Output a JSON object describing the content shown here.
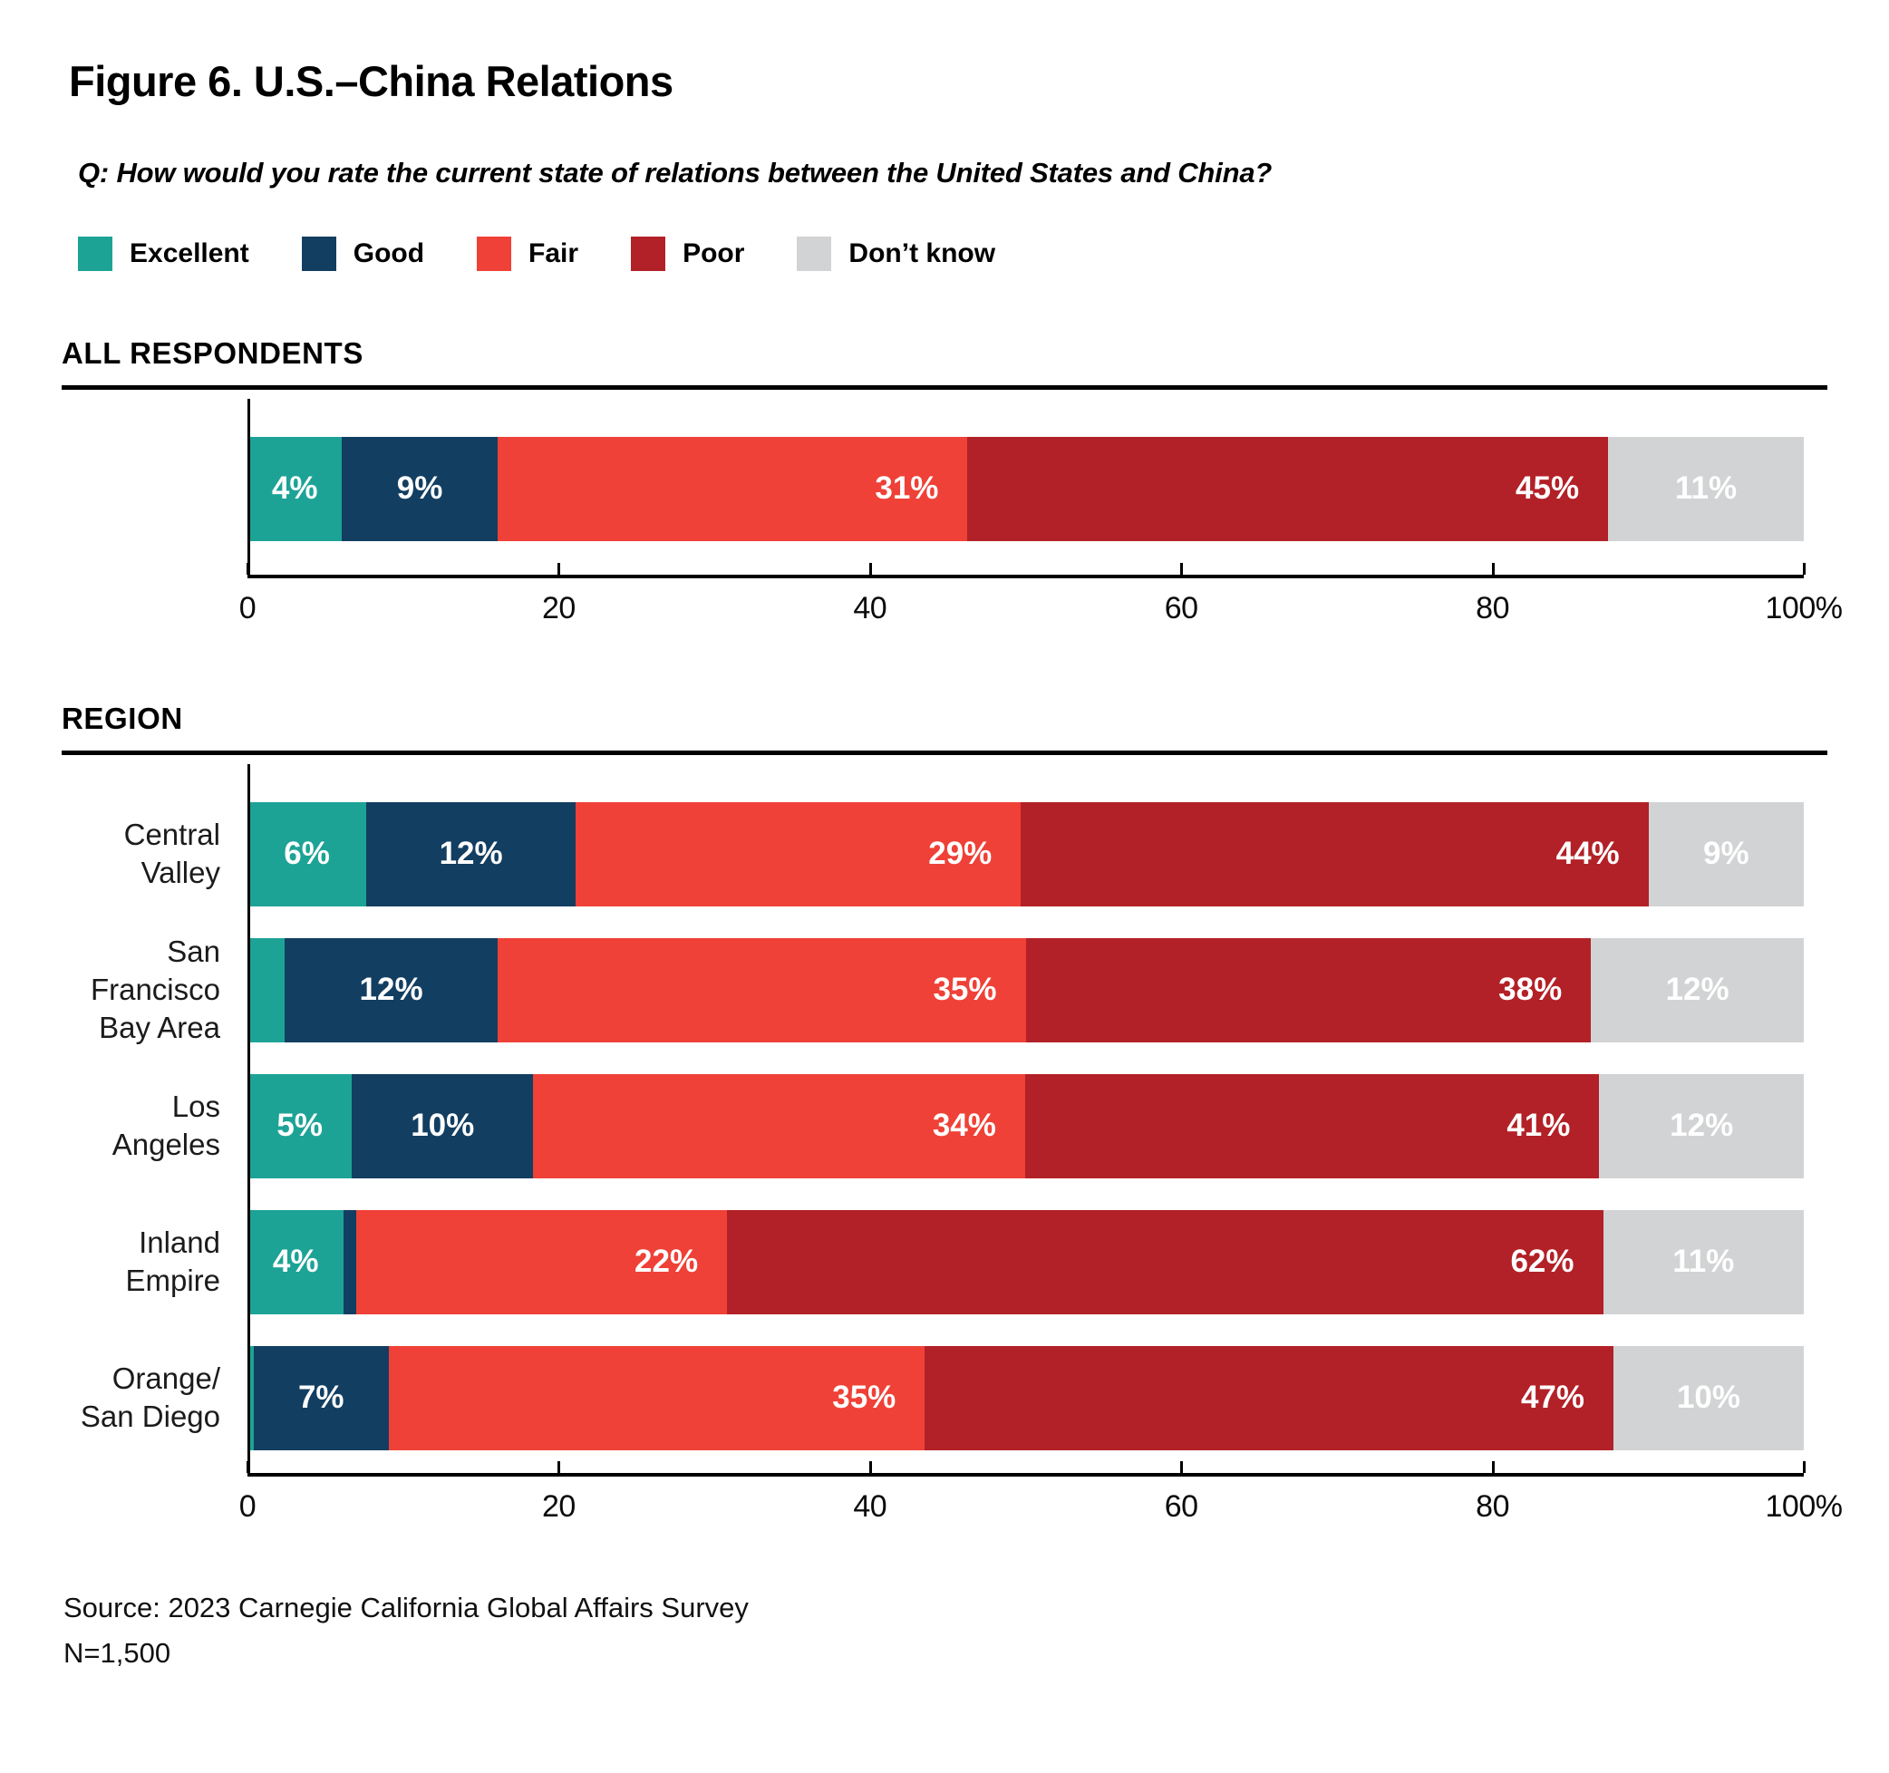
{
  "title": "Figure 6. U.S.–China Relations",
  "question": "Q: How would you rate the current state of relations between the United States and China?",
  "legend": {
    "items": [
      {
        "label": "Excellent",
        "color": "#1DA396"
      },
      {
        "label": "Good",
        "color": "#123E61"
      },
      {
        "label": "Fair",
        "color": "#EF4137"
      },
      {
        "label": "Poor",
        "color": "#B22127"
      },
      {
        "label": "Don’t know",
        "color": "#D2D3D4"
      }
    ]
  },
  "axis": {
    "max": 100,
    "tick_values": [
      0,
      20,
      40,
      60,
      80,
      100
    ],
    "tick_labels": [
      "0",
      "20",
      "40",
      "60",
      "80",
      "100%"
    ]
  },
  "sections": [
    {
      "heading": "ALL RESPONDENTS",
      "rows": [
        {
          "label_lines": [],
          "segments": [
            {
              "value": 4,
              "text": "4%"
            },
            {
              "value": 9,
              "text": "9%"
            },
            {
              "value": 31,
              "text": "31%"
            },
            {
              "value": 45,
              "text": "45%"
            },
            {
              "value": 11,
              "text": "11%"
            }
          ]
        }
      ]
    },
    {
      "heading": "REGION",
      "rows": [
        {
          "label_lines": [
            "Central Valley"
          ],
          "segments": [
            {
              "value": 6,
              "text": "6%"
            },
            {
              "value": 12,
              "text": "12%"
            },
            {
              "value": 29,
              "text": "29%"
            },
            {
              "value": 44,
              "text": "44%"
            },
            {
              "value": 9,
              "text": "9%"
            }
          ]
        },
        {
          "label_lines": [
            "San Francisco",
            "Bay Area"
          ],
          "segments": [
            {
              "value": 3,
              "text": ""
            },
            {
              "value": 12,
              "text": "12%"
            },
            {
              "value": 35,
              "text": "35%"
            },
            {
              "value": 38,
              "text": "38%"
            },
            {
              "value": 12,
              "text": "12%"
            }
          ]
        },
        {
          "label_lines": [
            "Los Angeles"
          ],
          "segments": [
            {
              "value": 5,
              "text": "5%"
            },
            {
              "value": 10,
              "text": "10%"
            },
            {
              "value": 34,
              "text": "34%"
            },
            {
              "value": 41,
              "text": "41%"
            },
            {
              "value": 12,
              "text": "12%"
            }
          ]
        },
        {
          "label_lines": [
            "Inland Empire"
          ],
          "segments": [
            {
              "value": 4,
              "text": "4%"
            },
            {
              "value": 1,
              "text": ""
            },
            {
              "value": 22,
              "text": "22%"
            },
            {
              "value": 62,
              "text": "62%"
            },
            {
              "value": 11,
              "text": "11%"
            }
          ]
        },
        {
          "label_lines": [
            "Orange/",
            "San Diego"
          ],
          "segments": [
            {
              "value": 0.5,
              "text": ""
            },
            {
              "value": 7,
              "text": "7%"
            },
            {
              "value": 35,
              "text": "35%"
            },
            {
              "value": 47,
              "text": "47%"
            },
            {
              "value": 10,
              "text": "10%"
            }
          ]
        }
      ]
    }
  ],
  "source": [
    "Source: 2023 Carnegie California Global Affairs Survey",
    "N=1,500"
  ],
  "chart_data": {
    "type": "bar",
    "subtype": "stacked-horizontal",
    "title": "Figure 6. U.S.–China Relations",
    "question": "Q: How would you rate the current state of relations between the United States and China?",
    "series_names": [
      "Excellent",
      "Good",
      "Fair",
      "Poor",
      "Don’t know"
    ],
    "series_colors": [
      "#1DA396",
      "#123E61",
      "#EF4137",
      "#B22127",
      "#D2D3D4"
    ],
    "xlim": [
      0,
      100
    ],
    "x_ticks": [
      0,
      20,
      40,
      60,
      80,
      100
    ],
    "legend_position": "top",
    "groups": [
      {
        "group": "ALL RESPONDENTS",
        "rows": [
          {
            "category": "All respondents",
            "values": [
              4,
              9,
              31,
              45,
              11
            ]
          }
        ]
      },
      {
        "group": "REGION",
        "rows": [
          {
            "category": "Central Valley",
            "values": [
              6,
              12,
              29,
              44,
              9
            ]
          },
          {
            "category": "San Francisco Bay Area",
            "values": [
              3,
              12,
              35,
              38,
              12
            ],
            "note": "Excellent segment unlabeled, ~3% estimated"
          },
          {
            "category": "Los Angeles",
            "values": [
              5,
              10,
              34,
              41,
              12
            ]
          },
          {
            "category": "Inland Empire",
            "values": [
              4,
              1,
              22,
              62,
              11
            ],
            "note": "Good segment unlabeled, ~1% estimated"
          },
          {
            "category": "Orange/San Diego",
            "values": [
              0.5,
              7,
              35,
              47,
              10
            ],
            "note": "Excellent segment is a thin unlabeled sliver, <1% estimated"
          }
        ]
      }
    ],
    "source": "Source: 2023 Carnegie California Global Affairs Survey",
    "n": "N=1,500"
  }
}
